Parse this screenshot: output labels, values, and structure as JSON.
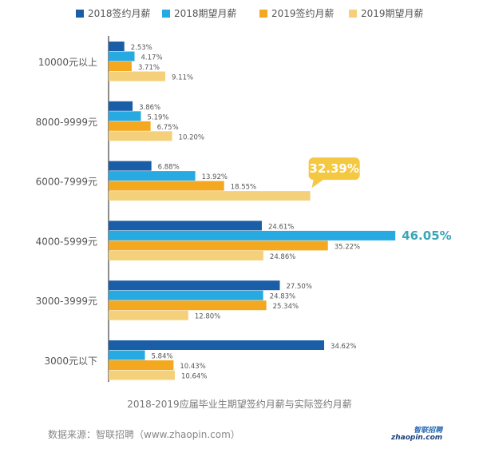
{
  "chart_data": {
    "type": "bar",
    "orientation": "horizontal",
    "title": "2018-2019应届毕业生期望签约月薪与实际签约月薪",
    "categories": [
      "10000元以上",
      "8000-9999元",
      "6000-7999元",
      "4000-5999元",
      "3000-3999元",
      "3000元以下"
    ],
    "series": [
      {
        "name": "2018签约月薪",
        "color": "#1a5ea8",
        "values": [
          2.53,
          3.86,
          6.88,
          24.61,
          27.5,
          34.62
        ],
        "labels": [
          "2.53%",
          "3.86%",
          "6.88%",
          "24.61%",
          "27.50%",
          "34.62%"
        ]
      },
      {
        "name": "2018期望月薪",
        "color": "#27aae1",
        "values": [
          4.17,
          5.19,
          13.92,
          46.05,
          24.83,
          5.84
        ],
        "labels": [
          "4.17%",
          "5.19%",
          "13.92%",
          "46.05%",
          "24.83%",
          "5.84%"
        ]
      },
      {
        "name": "2019签约月薪",
        "color": "#f3a820",
        "values": [
          3.71,
          6.75,
          18.55,
          35.22,
          25.34,
          10.43
        ],
        "labels": [
          "3.71%",
          "6.75%",
          "18.55%",
          "35.22%",
          "25.34%",
          "10.43%"
        ]
      },
      {
        "name": "2019期望月薪",
        "color": "#f5d07a",
        "values": [
          9.11,
          10.2,
          32.39,
          24.86,
          12.8,
          10.64
        ],
        "labels": [
          "9.11%",
          "10.20%",
          "32.39%",
          "24.86%",
          "12.80%",
          "10.64%"
        ]
      }
    ],
    "highlights": [
      {
        "series": 3,
        "category": 2,
        "label": "32.39%",
        "style": "callout",
        "color": "#f5c842"
      },
      {
        "series": 1,
        "category": 3,
        "label": "46.05%",
        "style": "large-text",
        "color": "#3aa6b6"
      }
    ],
    "xlim": [
      0,
      50
    ],
    "grid": false,
    "legend_position": "top"
  },
  "source": "数据来源：智联招聘（www.zhaopin.com）",
  "logo": {
    "top": "智联招聘",
    "bottom": "zhaopin.com"
  }
}
